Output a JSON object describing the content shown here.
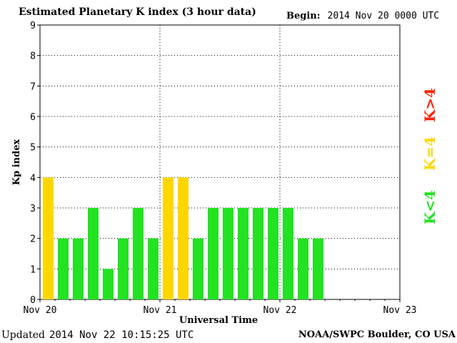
{
  "header": {
    "title": "Estimated Planetary K index (3 hour data)",
    "begin_label": "Begin:",
    "begin_value": "2014 Nov 20 0000 UTC"
  },
  "footer": {
    "updated_label": "Updated",
    "updated_value": "2014 Nov 22 10:15:25 UTC",
    "credit": "NOAA/SWPC Boulder, CO USA"
  },
  "legend": [
    {
      "label": "K>4",
      "color": "#ff2200"
    },
    {
      "label": "K=4",
      "color": "#ffd700"
    },
    {
      "label": "K<4",
      "color": "#22e222"
    }
  ],
  "chart_data": {
    "type": "bar",
    "title": "Estimated Planetary K index (3 hour data)",
    "xlabel": "Universal Time",
    "ylabel": "Kp index",
    "ylim": [
      0,
      9
    ],
    "yticks": [
      "0",
      "1",
      "2",
      "3",
      "4",
      "5",
      "6",
      "7",
      "8",
      "9"
    ],
    "xticks": [
      "Nov 20",
      "Nov 21",
      "Nov 22",
      "Nov 23"
    ],
    "bins_per_day": 8,
    "grid": true,
    "colors": {
      "low": "#22e222",
      "eq4": "#ffd700",
      "high": "#ff2200"
    },
    "values": [
      4,
      2,
      2,
      3,
      1,
      2,
      3,
      2,
      4,
      4,
      2,
      3,
      3,
      3,
      3,
      3,
      3,
      2,
      2
    ]
  }
}
